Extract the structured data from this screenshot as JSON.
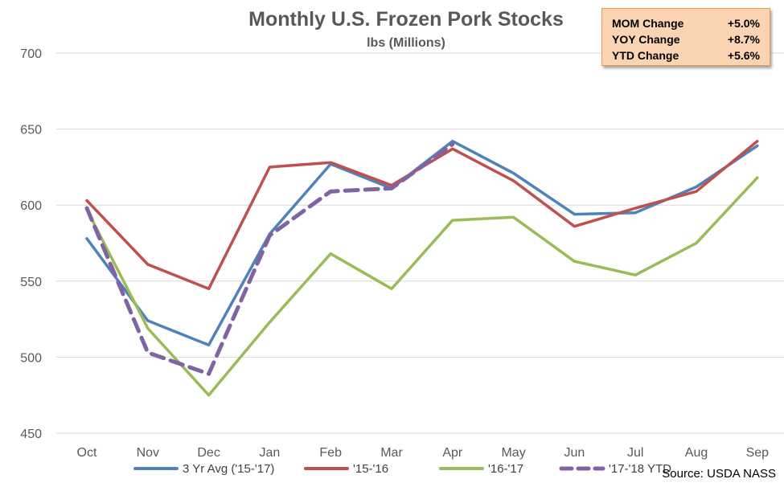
{
  "chart_data": {
    "type": "line",
    "title": "Monthly U.S. Frozen Pork Stocks",
    "subtitle": "lbs (Millions)",
    "categories": [
      "Oct",
      "Nov",
      "Dec",
      "Jan",
      "Feb",
      "Mar",
      "Apr",
      "May",
      "Jun",
      "Jul",
      "Aug",
      "Sep"
    ],
    "ylim": [
      450,
      700
    ],
    "yticks": [
      450,
      500,
      550,
      600,
      650,
      700
    ],
    "grid": true,
    "legend_position": "bottom",
    "series": [
      {
        "name": "3 Yr Avg ('15-'17)",
        "color": "#4f81bd",
        "dashed": false,
        "values": [
          578,
          524,
          508,
          581,
          627,
          611,
          642,
          621,
          594,
          595,
          612,
          639
        ]
      },
      {
        "name": "'15-'16",
        "color": "#c0504d",
        "dashed": false,
        "values": [
          603,
          561,
          545,
          625,
          628,
          613,
          637,
          616,
          586,
          598,
          609,
          642
        ]
      },
      {
        "name": "'16-'17",
        "color": "#9bbb59",
        "dashed": false,
        "values": [
          597,
          519,
          475,
          523,
          568,
          545,
          590,
          592,
          563,
          554,
          575,
          618
        ]
      },
      {
        "name": "'17-'18 YTD",
        "color": "#8064a2",
        "dashed": true,
        "values": [
          598,
          503,
          489,
          580,
          609,
          611,
          640,
          null,
          null,
          null,
          null,
          null
        ]
      }
    ],
    "source": "Source: USDA NASS"
  },
  "stats": [
    {
      "label": "MOM Change",
      "value": "+5.0%"
    },
    {
      "label": "YOY Change",
      "value": "+8.7%"
    },
    {
      "label": "YTD Change",
      "value": "+5.6%"
    }
  ]
}
